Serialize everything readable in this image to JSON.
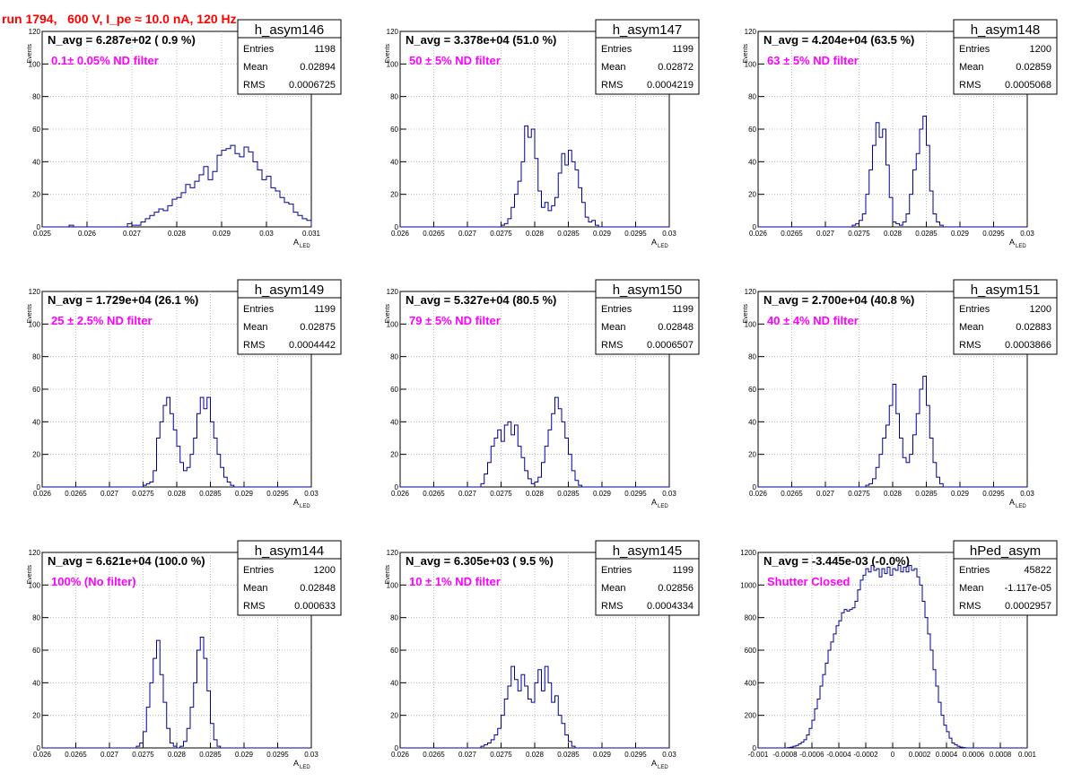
{
  "page_title": "run 1794,   600 V, I_pe ≈ 10.0 nA, 120 Hz",
  "colors": {
    "title": "#ff0000",
    "annotation": "#ff00ff",
    "histogram": "#000099",
    "grid": "#aaaaaa"
  },
  "chart_data": [
    {
      "type": "histogram",
      "name": "h_asym146",
      "headline": "N_avg = 6.287e+02 ( 0.9 %)",
      "annotation": "0.1± 0.05% ND filter",
      "stats": {
        "entries_label": "Entries",
        "entries": "1198",
        "mean_label": "Mean",
        "mean": "0.02894",
        "rms_label": "RMS",
        "rms": "0.0006725"
      },
      "xlabel": "A",
      "xlabel_sub": "LED",
      "ylabel": "Events",
      "grid": true,
      "xlim": [
        0.025,
        0.031
      ],
      "ylim": [
        0,
        120
      ],
      "xticks": [
        0.025,
        0.026,
        0.027,
        0.028,
        0.029,
        0.03,
        0.031
      ],
      "xtick_labels": [
        "0.025",
        "0.026",
        "0.027",
        "0.028",
        "0.029",
        "0.03",
        "0.031"
      ],
      "yticks": [
        0,
        20,
        40,
        60,
        80,
        100,
        120
      ],
      "ytick_labels": [
        "0",
        "20",
        "40",
        "60",
        "80",
        "100",
        "120"
      ],
      "bin_lo": 0.0256,
      "bin_width": 0.0001,
      "counts": [
        1,
        0,
        0,
        0,
        0,
        0,
        0,
        0,
        0,
        0,
        0,
        0,
        0,
        2,
        1,
        1,
        3,
        5,
        7,
        9,
        11,
        10,
        13,
        17,
        18,
        21,
        26,
        24,
        28,
        32,
        37,
        29,
        34,
        44,
        47,
        48,
        50,
        45,
        43,
        49,
        46,
        40,
        35,
        29,
        31,
        24,
        22,
        18,
        15,
        14,
        9,
        7,
        5,
        4,
        2,
        2,
        1,
        0,
        0,
        0
      ]
    },
    {
      "type": "histogram",
      "name": "h_asym147",
      "headline": "N_avg = 3.378e+04 (51.0 %)",
      "annotation": "50 ± 5% ND filter",
      "stats": {
        "entries_label": "Entries",
        "entries": "1199",
        "mean_label": "Mean",
        "mean": "0.02872",
        "rms_label": "RMS",
        "rms": "0.0004219"
      },
      "xlabel": "A",
      "xlabel_sub": "LED",
      "ylabel": "Events",
      "grid": true,
      "xlim": [
        0.026,
        0.03
      ],
      "ylim": [
        0,
        120
      ],
      "xticks": [
        0.026,
        0.0265,
        0.027,
        0.0275,
        0.028,
        0.0285,
        0.029,
        0.0295,
        0.03
      ],
      "xtick_labels": [
        "0.026",
        "0.0265",
        "0.027",
        "0.0275",
        "0.028",
        "0.0285",
        "0.029",
        "0.0295",
        "0.03"
      ],
      "yticks": [
        0,
        20,
        40,
        60,
        80,
        100,
        120
      ],
      "ytick_labels": [
        "0",
        "20",
        "40",
        "60",
        "80",
        "100",
        "120"
      ],
      "bin_lo": 0.0275,
      "bin_width": 5e-05,
      "counts": [
        1,
        2,
        5,
        12,
        20,
        28,
        40,
        62,
        55,
        60,
        42,
        22,
        12,
        15,
        10,
        13,
        18,
        33,
        45,
        38,
        47,
        40,
        35,
        24,
        15,
        6,
        3,
        4,
        1,
        0
      ]
    },
    {
      "type": "histogram",
      "name": "h_asym148",
      "headline": "N_avg = 4.204e+04 (63.5 %)",
      "annotation": "63 ± 5% ND filter",
      "stats": {
        "entries_label": "Entries",
        "entries": "1200",
        "mean_label": "Mean",
        "mean": "0.02859",
        "rms_label": "RMS",
        "rms": "0.0005068"
      },
      "xlabel": "A",
      "xlabel_sub": "LED",
      "ylabel": "Events",
      "grid": true,
      "xlim": [
        0.026,
        0.03
      ],
      "ylim": [
        0,
        120
      ],
      "xticks": [
        0.026,
        0.0265,
        0.027,
        0.0275,
        0.028,
        0.0285,
        0.029,
        0.0295,
        0.03
      ],
      "xtick_labels": [
        "0.026",
        "0.0265",
        "0.027",
        "0.0275",
        "0.028",
        "0.0285",
        "0.029",
        "0.0295",
        "0.03"
      ],
      "yticks": [
        0,
        20,
        40,
        60,
        80,
        100,
        120
      ],
      "ytick_labels": [
        "0",
        "20",
        "40",
        "60",
        "80",
        "100",
        "120"
      ],
      "bin_lo": 0.0274,
      "bin_width": 5e-05,
      "counts": [
        1,
        2,
        4,
        8,
        20,
        35,
        50,
        64,
        55,
        60,
        38,
        18,
        3,
        2,
        1,
        3,
        8,
        20,
        35,
        45,
        60,
        68,
        50,
        22,
        8,
        3,
        1,
        0
      ]
    },
    {
      "type": "histogram",
      "name": "h_asym149",
      "headline": "N_avg = 1.729e+04 (26.1 %)",
      "annotation": "25 ± 2.5% ND filter",
      "stats": {
        "entries_label": "Entries",
        "entries": "1199",
        "mean_label": "Mean",
        "mean": "0.02875",
        "rms_label": "RMS",
        "rms": "0.0004442"
      },
      "xlabel": "A",
      "xlabel_sub": "LED",
      "ylabel": "Events",
      "grid": true,
      "xlim": [
        0.026,
        0.03
      ],
      "ylim": [
        0,
        120
      ],
      "xticks": [
        0.026,
        0.0265,
        0.027,
        0.0275,
        0.028,
        0.0285,
        0.029,
        0.0295,
        0.03
      ],
      "xtick_labels": [
        "0.026",
        "0.0265",
        "0.027",
        "0.0275",
        "0.028",
        "0.0285",
        "0.029",
        "0.0295",
        "0.03"
      ],
      "yticks": [
        0,
        20,
        40,
        60,
        80,
        100,
        120
      ],
      "ytick_labels": [
        "0",
        "20",
        "40",
        "60",
        "80",
        "100",
        "120"
      ],
      "bin_lo": 0.0275,
      "bin_width": 5e-05,
      "counts": [
        1,
        2,
        3,
        10,
        30,
        40,
        50,
        55,
        45,
        35,
        25,
        15,
        10,
        12,
        20,
        30,
        45,
        55,
        48,
        55,
        40,
        30,
        20,
        12,
        6,
        3,
        1,
        0
      ]
    },
    {
      "type": "histogram",
      "name": "h_asym150",
      "headline": "N_avg = 5.327e+04 (80.5 %)",
      "annotation": "79 ± 5% ND filter",
      "stats": {
        "entries_label": "Entries",
        "entries": "1199",
        "mean_label": "Mean",
        "mean": "0.02848",
        "rms_label": "RMS",
        "rms": "0.0006507"
      },
      "xlabel": "A",
      "xlabel_sub": "LED",
      "ylabel": "Events",
      "grid": true,
      "xlim": [
        0.026,
        0.03
      ],
      "ylim": [
        0,
        120
      ],
      "xticks": [
        0.026,
        0.0265,
        0.027,
        0.0275,
        0.028,
        0.0285,
        0.029,
        0.0295,
        0.03
      ],
      "xtick_labels": [
        "0.026",
        "0.0265",
        "0.027",
        "0.0275",
        "0.028",
        "0.0285",
        "0.029",
        "0.0295",
        "0.03"
      ],
      "yticks": [
        0,
        20,
        40,
        60,
        80,
        100,
        120
      ],
      "ytick_labels": [
        "0",
        "20",
        "40",
        "60",
        "80",
        "100",
        "120"
      ],
      "bin_lo": 0.0272,
      "bin_width": 5e-05,
      "counts": [
        2,
        8,
        15,
        25,
        30,
        35,
        28,
        38,
        40,
        32,
        38,
        25,
        18,
        10,
        5,
        2,
        3,
        6,
        15,
        25,
        35,
        45,
        55,
        48,
        40,
        30,
        20,
        10,
        4,
        1,
        0
      ]
    },
    {
      "type": "histogram",
      "name": "h_asym151",
      "headline": "N_avg = 2.700e+04 (40.8 %)",
      "annotation": "40 ± 4% ND filter",
      "stats": {
        "entries_label": "Entries",
        "entries": "1200",
        "mean_label": "Mean",
        "mean": "0.02883",
        "rms_label": "RMS",
        "rms": "0.0003866"
      },
      "xlabel": "A",
      "xlabel_sub": "LED",
      "ylabel": "Events",
      "grid": true,
      "xlim": [
        0.026,
        0.03
      ],
      "ylim": [
        0,
        120
      ],
      "xticks": [
        0.026,
        0.0265,
        0.027,
        0.0275,
        0.028,
        0.0285,
        0.029,
        0.0295,
        0.03
      ],
      "xtick_labels": [
        "0.026",
        "0.0265",
        "0.027",
        "0.0275",
        "0.028",
        "0.0285",
        "0.029",
        "0.0295",
        "0.03"
      ],
      "yticks": [
        0,
        20,
        40,
        60,
        80,
        100,
        120
      ],
      "ytick_labels": [
        "0",
        "20",
        "40",
        "60",
        "80",
        "100",
        "120"
      ],
      "bin_lo": 0.0276,
      "bin_width": 5e-05,
      "counts": [
        1,
        2,
        5,
        12,
        20,
        30,
        38,
        50,
        63,
        45,
        30,
        18,
        15,
        20,
        32,
        45,
        60,
        68,
        50,
        30,
        15,
        6,
        2,
        0
      ]
    },
    {
      "type": "histogram",
      "name": "h_asym144",
      "headline": "N_avg = 6.621e+04 (100.0 %)",
      "annotation": "100% (No filter)",
      "stats": {
        "entries_label": "Entries",
        "entries": "1200",
        "mean_label": "Mean",
        "mean": "0.02848",
        "rms_label": "RMS",
        "rms": "0.000633"
      },
      "xlabel": "A",
      "xlabel_sub": "LED",
      "ylabel": "Events",
      "grid": true,
      "xlim": [
        0.026,
        0.03
      ],
      "ylim": [
        0,
        120
      ],
      "xticks": [
        0.026,
        0.0265,
        0.027,
        0.0275,
        0.028,
        0.0285,
        0.029,
        0.0295,
        0.03
      ],
      "xtick_labels": [
        "0.026",
        "0.0265",
        "0.027",
        "0.0275",
        "0.028",
        "0.0285",
        "0.029",
        "0.0295",
        "0.03"
      ],
      "yticks": [
        0,
        20,
        40,
        60,
        80,
        100,
        120
      ],
      "ytick_labels": [
        "0",
        "20",
        "40",
        "60",
        "80",
        "100",
        "120"
      ],
      "bin_lo": 0.0274,
      "bin_width": 5e-05,
      "counts": [
        1,
        3,
        10,
        25,
        40,
        55,
        66,
        45,
        28,
        12,
        3,
        1,
        0,
        1,
        4,
        12,
        25,
        40,
        60,
        68,
        55,
        35,
        15,
        5,
        1,
        0
      ]
    },
    {
      "type": "histogram",
      "name": "h_asym145",
      "headline": "N_avg = 6.305e+03 ( 9.5 %)",
      "annotation": "10 ± 1% ND filter",
      "stats": {
        "entries_label": "Entries",
        "entries": "1199",
        "mean_label": "Mean",
        "mean": "0.02856",
        "rms_label": "RMS",
        "rms": "0.0004334"
      },
      "xlabel": "A",
      "xlabel_sub": "LED",
      "ylabel": "Events",
      "grid": true,
      "xlim": [
        0.026,
        0.03
      ],
      "ylim": [
        0,
        120
      ],
      "xticks": [
        0.026,
        0.0265,
        0.027,
        0.0275,
        0.028,
        0.0285,
        0.029,
        0.0295,
        0.03
      ],
      "xtick_labels": [
        "0.026",
        "0.0265",
        "0.027",
        "0.0275",
        "0.028",
        "0.0285",
        "0.029",
        "0.0295",
        "0.03"
      ],
      "yticks": [
        0,
        20,
        40,
        60,
        80,
        100,
        120
      ],
      "ytick_labels": [
        "0",
        "20",
        "40",
        "60",
        "80",
        "100",
        "120"
      ],
      "bin_lo": 0.0272,
      "bin_width": 5e-05,
      "counts": [
        1,
        2,
        3,
        5,
        8,
        12,
        20,
        30,
        38,
        50,
        42,
        35,
        45,
        38,
        30,
        28,
        40,
        48,
        35,
        50,
        40,
        28,
        32,
        20,
        15,
        8,
        4,
        1,
        0
      ]
    },
    {
      "type": "histogram",
      "name": "hPed_asym",
      "headline": "N_avg = -3.445e-03 (-0.0%)",
      "annotation": "Shutter Closed",
      "stats": {
        "entries_label": "Entries",
        "entries": "45822",
        "mean_label": "Mean",
        "mean": "-1.117e-05",
        "rms_label": "RMS",
        "rms": "0.0002957"
      },
      "xlabel": "",
      "xlabel_sub": "",
      "ylabel": "",
      "grid": true,
      "xlim": [
        -0.001,
        0.001
      ],
      "ylim": [
        0,
        1200
      ],
      "xticks": [
        -0.001,
        -0.0008,
        -0.0006,
        -0.0004,
        -0.0002,
        0,
        0.0002,
        0.0004,
        0.0006,
        0.0008,
        0.001
      ],
      "xtick_labels": [
        "-0.001",
        "-0.0008",
        "-0.0006",
        "-0.0004",
        "-0.0002",
        "0",
        "0.0002",
        "0.0004",
        "0.0006",
        "0.0008",
        "0.001"
      ],
      "yticks": [
        0,
        200,
        400,
        600,
        800,
        1000,
        1200
      ],
      "ytick_labels": [
        "0",
        "200",
        "400",
        "600",
        "800",
        "1000",
        "1200"
      ],
      "bin_lo": -0.001,
      "bin_width": 2e-05,
      "counts": [
        0,
        0,
        0,
        0,
        0,
        0,
        0,
        0,
        0,
        0,
        0,
        2,
        5,
        10,
        15,
        25,
        35,
        50,
        80,
        120,
        170,
        240,
        300,
        380,
        450,
        520,
        600,
        650,
        700,
        750,
        780,
        830,
        850,
        840,
        850,
        860,
        900,
        970,
        1030,
        1060,
        1100,
        1080,
        1120,
        1090,
        1100,
        1050,
        1100,
        1070,
        1110,
        1060,
        1100,
        1090,
        1120,
        1080,
        1110,
        1080,
        1120,
        1090,
        1100,
        1050,
        1000,
        900,
        800,
        700,
        600,
        480,
        380,
        280,
        200,
        140,
        100,
        60,
        30,
        20,
        10,
        5,
        2,
        0,
        0,
        0
      ]
    }
  ]
}
